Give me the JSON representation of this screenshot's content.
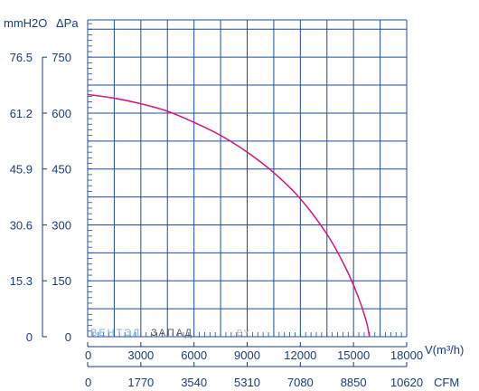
{
  "chart_data": {
    "type": "line",
    "y_units": {
      "left": "mmH2O",
      "right": "ΔPa"
    },
    "x_units": {
      "top": "V(m³/h)",
      "bottom": "CFM"
    },
    "x_ticks_m3h": [
      0,
      3000,
      6000,
      9000,
      12000,
      15000,
      18000
    ],
    "x_ticks_cfm": [
      "0",
      "1770",
      "3540",
      "5310",
      "7080",
      "8850",
      "10620"
    ],
    "y_ticks_pa": [
      0,
      150,
      300,
      450,
      600,
      750
    ],
    "y_ticks_mmh2o": [
      "0",
      "15.3",
      "30.6",
      "45.9",
      "61.2",
      "76.5"
    ],
    "xlim": [
      0,
      18000
    ],
    "ylim": [
      0,
      850
    ],
    "grid": true,
    "curve_color": "#d6157f",
    "axis_color": "#1a3d7a",
    "grid_color": "#1f4d9e",
    "series": [
      {
        "x": [
          0,
          1500,
          3000,
          4500,
          6000,
          7500,
          9000,
          10500,
          12000,
          13500,
          14500,
          15200,
          15700,
          15900
        ],
        "y": [
          650,
          640,
          625,
          605,
          575,
          540,
          495,
          440,
          370,
          275,
          190,
          115,
          45,
          0
        ]
      }
    ]
  },
  "watermark": {
    "part1": "ВЕНТЭЛ",
    "part2": "ЗАПАД",
    "part3": ".BY"
  }
}
